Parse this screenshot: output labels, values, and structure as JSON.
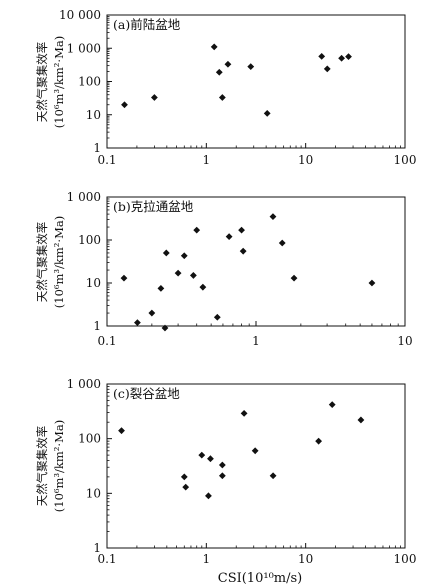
{
  "chart_data": [
    {
      "type": "scatter",
      "title": "(a)前陆盆地",
      "xscale": "log",
      "yscale": "log",
      "xlim": [
        0.1,
        100
      ],
      "ylim": [
        1,
        10000
      ],
      "xticks": [
        "0.1",
        "1",
        "10",
        "100"
      ],
      "yticks": [
        "1",
        "10",
        "100",
        "1 000",
        "10 000"
      ],
      "ylabel": "天然气聚集效率",
      "ylabel_unit": "(10⁶m³/km²·Ma)",
      "points": [
        [
          0.15,
          20
        ],
        [
          0.3,
          33
        ],
        [
          1.2,
          1100
        ],
        [
          1.35,
          190
        ],
        [
          1.45,
          33
        ],
        [
          1.65,
          330
        ],
        [
          2.8,
          280
        ],
        [
          4.1,
          11
        ],
        [
          14.5,
          570
        ],
        [
          16.5,
          240
        ],
        [
          23,
          500
        ],
        [
          27,
          560
        ]
      ]
    },
    {
      "type": "scatter",
      "title": "(b)克拉通盆地",
      "xscale": "log",
      "yscale": "log",
      "xlim": [
        0.1,
        10
      ],
      "ylim": [
        1,
        1000
      ],
      "xticks": [
        "0.1",
        "1",
        "10"
      ],
      "yticks": [
        "1",
        "10",
        "100",
        "1 000"
      ],
      "ylabel": "天然气聚集效率",
      "ylabel_unit": "(10⁶m³/km²·Ma)",
      "points": [
        [
          0.13,
          13
        ],
        [
          0.16,
          1.2
        ],
        [
          0.2,
          2
        ],
        [
          0.23,
          7.5
        ],
        [
          0.245,
          0.9
        ],
        [
          0.25,
          50
        ],
        [
          0.3,
          17
        ],
        [
          0.33,
          43
        ],
        [
          0.38,
          15
        ],
        [
          0.4,
          170
        ],
        [
          0.44,
          8
        ],
        [
          0.55,
          1.6
        ],
        [
          0.66,
          120
        ],
        [
          0.8,
          170
        ],
        [
          0.82,
          55
        ],
        [
          1.3,
          350
        ],
        [
          1.5,
          85
        ],
        [
          1.8,
          13
        ],
        [
          6,
          10
        ]
      ]
    },
    {
      "type": "scatter",
      "title": "(c)裂谷盆地",
      "xscale": "log",
      "yscale": "log",
      "xlim": [
        0.1,
        100
      ],
      "ylim": [
        1,
        1000
      ],
      "xticks": [
        "0.1",
        "1",
        "10",
        "100"
      ],
      "yticks": [
        "1",
        "10",
        "100",
        "1 000"
      ],
      "ylabel": "天然气聚集效率",
      "ylabel_unit": "(10⁶m³/km²·Ma)",
      "xlabel": "CSI(10¹⁰m/s)",
      "points": [
        [
          0.14,
          140
        ],
        [
          0.6,
          20
        ],
        [
          0.62,
          13
        ],
        [
          0.9,
          50
        ],
        [
          1.05,
          9
        ],
        [
          1.1,
          43
        ],
        [
          1.45,
          33
        ],
        [
          1.45,
          21
        ],
        [
          2.4,
          290
        ],
        [
          3.1,
          60
        ],
        [
          4.7,
          21
        ],
        [
          13.5,
          90
        ],
        [
          18.5,
          420
        ],
        [
          36,
          220
        ]
      ]
    }
  ]
}
